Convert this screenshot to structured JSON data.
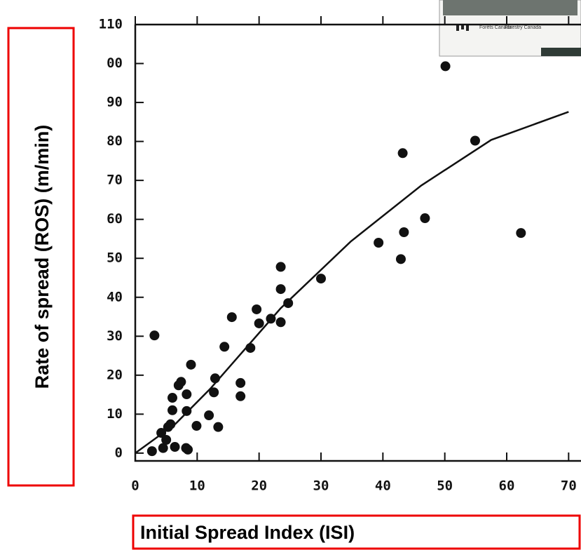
{
  "chart_data": {
    "type": "scatter",
    "x_label": "Initial Spread Index (ISI)",
    "y_label": "Rate of spread (ROS) (m/min)",
    "annotations": [
      "Forêts Canada",
      "Forestry Canada"
    ],
    "xlim": [
      0,
      72
    ],
    "ylim": [
      -2,
      110
    ],
    "xticks": [
      0,
      10,
      20,
      30,
      40,
      50,
      60,
      70
    ],
    "yticks": [
      0,
      10,
      20,
      30,
      40,
      50,
      60,
      70,
      80,
      90,
      {
        "value": 100,
        "label": "00"
      },
      110
    ],
    "series": [
      {
        "kind": "points",
        "color": "#111111",
        "x": [
          3.1,
          2.7,
          4.2,
          4.5,
          5.0,
          5.3,
          5.7,
          6.0,
          6.0,
          7.0,
          7.4,
          8.3,
          9.0,
          8.3,
          6.4,
          8.2,
          8.5,
          9.9,
          11.9,
          12.7,
          12.9,
          13.4,
          14.4,
          15.6,
          17.0,
          17.0,
          18.6,
          19.6,
          20.0,
          21.9,
          23.5,
          23.5,
          23.5,
          24.7,
          30.0,
          39.3,
          42.9,
          43.2,
          43.4,
          46.8,
          50.1,
          54.9,
          62.3
        ],
        "values": [
          30.2,
          0.5,
          5.2,
          1.3,
          3.4,
          6.7,
          7.4,
          11.0,
          14.2,
          17.4,
          18.3,
          15.1,
          22.7,
          10.8,
          1.6,
          1.3,
          0.9,
          7.0,
          9.7,
          15.6,
          19.2,
          6.7,
          27.3,
          34.9,
          18.0,
          14.6,
          27.0,
          36.9,
          33.3,
          34.5,
          33.6,
          47.8,
          42.1,
          38.5,
          44.8,
          54.0,
          49.8,
          77.0,
          56.7,
          60.3,
          99.3,
          80.2,
          56.5
        ]
      },
      {
        "kind": "line",
        "color": "#111111",
        "x": [
          0,
          6.5,
          12.1,
          23.5,
          34.8,
          46.2,
          57.5,
          70
        ],
        "values": [
          0,
          7.5,
          16.5,
          37.2,
          54.3,
          68.7,
          80.4,
          87.6
        ]
      }
    ]
  }
}
